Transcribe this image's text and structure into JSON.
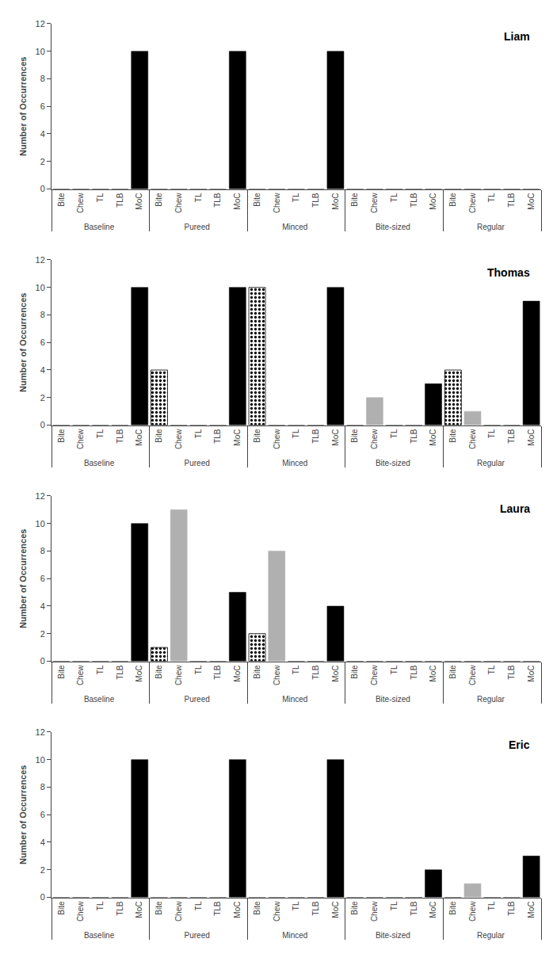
{
  "chart_data": [
    {
      "type": "bar",
      "title": "Liam",
      "y_label": "Number of Occurrences",
      "categories": [
        [
          "Baseline",
          "Bite"
        ],
        [
          "Baseline",
          "Chew"
        ],
        [
          "Baseline",
          "TL"
        ],
        [
          "Baseline",
          "TLB"
        ],
        [
          "Baseline",
          "MoC"
        ],
        [
          "Pureed",
          "Bite"
        ],
        [
          "Pureed",
          "Chew"
        ],
        [
          "Pureed",
          "TL"
        ],
        [
          "Pureed",
          "TLB"
        ],
        [
          "Pureed",
          "MoC"
        ],
        [
          "Minced",
          "Bite"
        ],
        [
          "Minced",
          "Chew"
        ],
        [
          "Minced",
          "TL"
        ],
        [
          "Minced",
          "TLB"
        ],
        [
          "Minced",
          "MoC"
        ],
        [
          "Bite-sized",
          "Bite"
        ],
        [
          "Bite-sized",
          "Chew"
        ],
        [
          "Bite-sized",
          "TL"
        ],
        [
          "Bite-sized",
          "TLB"
        ],
        [
          "Bite-sized",
          "MoC"
        ],
        [
          "Regular",
          "Bite"
        ],
        [
          "Regular",
          "Chew"
        ],
        [
          "Regular",
          "TL"
        ],
        [
          "Regular",
          "TLB"
        ],
        [
          "Regular",
          "MoC"
        ]
      ],
      "series": [
        {
          "color": "#000000",
          "values": [
            0,
            0,
            0,
            0,
            10,
            0,
            0,
            0,
            0,
            10,
            0,
            0,
            0,
            0,
            10,
            0,
            0,
            0,
            0,
            0,
            0,
            0,
            0,
            0,
            0
          ]
        }
      ],
      "ylim": [
        0,
        12
      ],
      "yticks": [
        0,
        2,
        4,
        6,
        8,
        10,
        12
      ],
      "grid": false
    },
    {
      "type": "bar",
      "title": "Thomas",
      "y_label": "Number of Occurrences",
      "categories": [
        [
          "Baseline",
          "Bite"
        ],
        [
          "Baseline",
          "Chew"
        ],
        [
          "Baseline",
          "TL"
        ],
        [
          "Baseline",
          "TLB"
        ],
        [
          "Baseline",
          "MoC"
        ],
        [
          "Pureed",
          "Bite"
        ],
        [
          "Pureed",
          "Chew"
        ],
        [
          "Pureed",
          "TL"
        ],
        [
          "Pureed",
          "TLB"
        ],
        [
          "Pureed",
          "MoC"
        ],
        [
          "Minced",
          "Bite"
        ],
        [
          "Minced",
          "Chew"
        ],
        [
          "Minced",
          "TL"
        ],
        [
          "Minced",
          "TLB"
        ],
        [
          "Minced",
          "MoC"
        ],
        [
          "Bite-sized",
          "Bite"
        ],
        [
          "Bite-sized",
          "Chew"
        ],
        [
          "Bite-sized",
          "TL"
        ],
        [
          "Bite-sized",
          "TLB"
        ],
        [
          "Bite-sized",
          "MoC"
        ],
        [
          "Regular",
          "Bite"
        ],
        [
          "Regular",
          "Chew"
        ],
        [
          "Regular",
          "TL"
        ],
        [
          "Regular",
          "TLB"
        ],
        [
          "Regular",
          "MoC"
        ]
      ],
      "series": [
        {
          "color": "#000000",
          "values": [
            0,
            0,
            0,
            0,
            10,
            null,
            0,
            0,
            0,
            10,
            null,
            0,
            0,
            0,
            10,
            0,
            null,
            0,
            0,
            3,
            null,
            null,
            0,
            0,
            9
          ]
        },
        {
          "color": "#b0b0b0",
          "values": [
            null,
            null,
            null,
            null,
            null,
            null,
            null,
            null,
            null,
            null,
            null,
            null,
            null,
            null,
            null,
            null,
            2,
            null,
            null,
            null,
            null,
            1,
            null,
            null,
            null
          ]
        },
        {
          "color": "#ffffff",
          "marker": "dotted",
          "values": [
            null,
            null,
            null,
            null,
            null,
            4,
            null,
            null,
            null,
            null,
            10,
            null,
            null,
            null,
            null,
            null,
            null,
            null,
            null,
            null,
            4,
            null,
            null,
            null,
            null
          ]
        }
      ],
      "ylim": [
        0,
        12
      ],
      "yticks": [
        0,
        2,
        4,
        6,
        8,
        10,
        12
      ],
      "grid": false
    },
    {
      "type": "bar",
      "title": "Laura",
      "y_label": "Number of Occurrences",
      "categories": [
        [
          "Baseline",
          "Bite"
        ],
        [
          "Baseline",
          "Chew"
        ],
        [
          "Baseline",
          "TL"
        ],
        [
          "Baseline",
          "TLB"
        ],
        [
          "Baseline",
          "MoC"
        ],
        [
          "Pureed",
          "Bite"
        ],
        [
          "Pureed",
          "Chew"
        ],
        [
          "Pureed",
          "TL"
        ],
        [
          "Pureed",
          "TLB"
        ],
        [
          "Pureed",
          "MoC"
        ],
        [
          "Minced",
          "Bite"
        ],
        [
          "Minced",
          "Chew"
        ],
        [
          "Minced",
          "TL"
        ],
        [
          "Minced",
          "TLB"
        ],
        [
          "Minced",
          "MoC"
        ],
        [
          "Bite-sized",
          "Bite"
        ],
        [
          "Bite-sized",
          "Chew"
        ],
        [
          "Bite-sized",
          "TL"
        ],
        [
          "Bite-sized",
          "TLB"
        ],
        [
          "Bite-sized",
          "MoC"
        ],
        [
          "Regular",
          "Bite"
        ],
        [
          "Regular",
          "Chew"
        ],
        [
          "Regular",
          "TL"
        ],
        [
          "Regular",
          "TLB"
        ],
        [
          "Regular",
          "MoC"
        ]
      ],
      "series": [
        {
          "color": "#000000",
          "values": [
            0,
            0,
            0,
            0,
            10,
            null,
            null,
            0,
            0,
            5,
            null,
            null,
            0,
            0,
            4,
            0,
            0,
            0,
            0,
            0,
            0,
            0,
            0,
            0,
            0
          ]
        },
        {
          "color": "#b0b0b0",
          "values": [
            null,
            null,
            null,
            null,
            null,
            null,
            11,
            null,
            null,
            null,
            null,
            8,
            null,
            null,
            null,
            null,
            null,
            null,
            null,
            null,
            null,
            null,
            null,
            null,
            null
          ]
        },
        {
          "color": "#ffffff",
          "marker": "dotted",
          "values": [
            null,
            null,
            null,
            null,
            null,
            1,
            null,
            null,
            null,
            null,
            2,
            null,
            null,
            null,
            null,
            null,
            null,
            null,
            null,
            null,
            null,
            null,
            null,
            null,
            null
          ]
        }
      ],
      "ylim": [
        0,
        12
      ],
      "yticks": [
        0,
        2,
        4,
        6,
        8,
        10,
        12
      ],
      "grid": false
    },
    {
      "type": "bar",
      "title": "Eric",
      "y_label": "Number of Occurrences",
      "categories": [
        [
          "Baseline",
          "Bite"
        ],
        [
          "Baseline",
          "Chew"
        ],
        [
          "Baseline",
          "TL"
        ],
        [
          "Baseline",
          "TLB"
        ],
        [
          "Baseline",
          "MoC"
        ],
        [
          "Pureed",
          "Bite"
        ],
        [
          "Pureed",
          "Chew"
        ],
        [
          "Pureed",
          "TL"
        ],
        [
          "Pureed",
          "TLB"
        ],
        [
          "Pureed",
          "MoC"
        ],
        [
          "Minced",
          "Bite"
        ],
        [
          "Minced",
          "Chew"
        ],
        [
          "Minced",
          "TL"
        ],
        [
          "Minced",
          "TLB"
        ],
        [
          "Minced",
          "MoC"
        ],
        [
          "Bite-sized",
          "Bite"
        ],
        [
          "Bite-sized",
          "Chew"
        ],
        [
          "Bite-sized",
          "TL"
        ],
        [
          "Bite-sized",
          "TLB"
        ],
        [
          "Bite-sized",
          "MoC"
        ],
        [
          "Regular",
          "Bite"
        ],
        [
          "Regular",
          "Chew"
        ],
        [
          "Regular",
          "TL"
        ],
        [
          "Regular",
          "TLB"
        ],
        [
          "Regular",
          "MoC"
        ]
      ],
      "series": [
        {
          "color": "#000000",
          "values": [
            0,
            0,
            0,
            0,
            10,
            0,
            0,
            0,
            0,
            10,
            0,
            0,
            0,
            0,
            10,
            0,
            0,
            0,
            0,
            2,
            0,
            null,
            0,
            0,
            3
          ]
        },
        {
          "color": "#b0b0b0",
          "values": [
            null,
            null,
            null,
            null,
            null,
            null,
            null,
            null,
            null,
            null,
            null,
            null,
            null,
            null,
            null,
            null,
            null,
            null,
            null,
            null,
            null,
            1,
            null,
            null,
            null
          ]
        }
      ],
      "ylim": [
        0,
        12
      ],
      "yticks": [
        0,
        2,
        4,
        6,
        8,
        10,
        12
      ],
      "grid": false
    }
  ]
}
